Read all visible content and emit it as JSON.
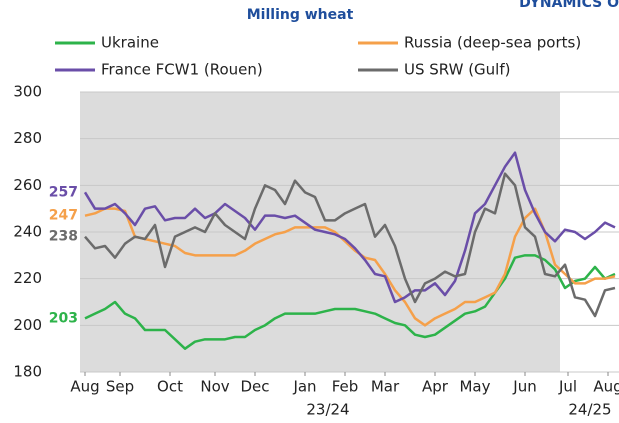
{
  "chart_data": {
    "type": "line",
    "title": "Milling wheat",
    "subtitle": "DYNAMICS O",
    "x": [
      0,
      1,
      2,
      3,
      4,
      5,
      6,
      7,
      8,
      9,
      10,
      11,
      12,
      13,
      14,
      15,
      16,
      17,
      18,
      19,
      20,
      21,
      22,
      23,
      24,
      25,
      26,
      27,
      28,
      29,
      30,
      31,
      32,
      33,
      34,
      35,
      36,
      37,
      38,
      39,
      40,
      41,
      42,
      43,
      44,
      45,
      46,
      47,
      48,
      49,
      50,
      51,
      52,
      53
    ],
    "series": [
      {
        "name": "Ukraine",
        "color": "#2db34a",
        "values": [
          203,
          205,
          207,
          210,
          205,
          203,
          198,
          198,
          198,
          194,
          190,
          193,
          194,
          194,
          194,
          195,
          195,
          198,
          200,
          203,
          205,
          205,
          205,
          205,
          206,
          207,
          207,
          207,
          206,
          205,
          203,
          201,
          200,
          196,
          195,
          196,
          199,
          202,
          205,
          206,
          208,
          214,
          220,
          229,
          230,
          230,
          228,
          224,
          216,
          219,
          220,
          225,
          220,
          222
        ]
      },
      {
        "name": "Russia (deep-sea ports)",
        "color": "#f5a04a",
        "values": [
          247,
          248,
          250,
          250,
          249,
          238,
          237,
          236,
          235,
          234,
          231,
          230,
          230,
          230,
          230,
          230,
          232,
          235,
          237,
          239,
          240,
          242,
          242,
          242,
          242,
          240,
          236,
          232,
          229,
          228,
          222,
          215,
          210,
          203,
          200,
          203,
          205,
          207,
          210,
          210,
          212,
          214,
          222,
          238,
          246,
          250,
          240,
          226,
          222,
          218,
          218,
          220,
          220,
          221
        ]
      },
      {
        "name": "France FCW1 (Rouen)",
        "color": "#6a4ea8",
        "values": [
          257,
          250,
          250,
          252,
          248,
          243,
          250,
          251,
          245,
          246,
          246,
          250,
          246,
          248,
          252,
          249,
          246,
          241,
          247,
          247,
          246,
          247,
          244,
          241,
          240,
          239,
          237,
          233,
          228,
          222,
          221,
          210,
          212,
          215,
          215,
          218,
          213,
          219,
          232,
          248,
          252,
          260,
          268,
          274,
          258,
          248,
          240,
          236,
          241,
          240,
          237,
          240,
          244,
          242
        ]
      },
      {
        "name": "US SRW (Gulf)",
        "color": "#6b6b6b",
        "values": [
          238,
          233,
          234,
          229,
          235,
          238,
          237,
          243,
          225,
          238,
          240,
          242,
          240,
          248,
          243,
          240,
          237,
          250,
          260,
          258,
          252,
          262,
          257,
          255,
          245,
          245,
          248,
          250,
          252,
          238,
          243,
          234,
          220,
          210,
          218,
          220,
          223,
          221,
          222,
          240,
          250,
          248,
          265,
          260,
          242,
          238,
          222,
          221,
          226,
          212,
          211,
          204,
          215,
          216
        ]
      }
    ],
    "xlim": [
      -0.5,
      53.4
    ],
    "xticks": [
      {
        "value": 0,
        "label": "Aug"
      },
      {
        "value": 3.5,
        "label": "Sep"
      },
      {
        "value": 8.5,
        "label": "Oct"
      },
      {
        "value": 13,
        "label": "Nov"
      },
      {
        "value": 17,
        "label": "Dec"
      },
      {
        "value": 22,
        "label": "Jan"
      },
      {
        "value": 26,
        "label": "Feb"
      },
      {
        "value": 30,
        "label": "Mar"
      },
      {
        "value": 35,
        "label": "Apr"
      },
      {
        "value": 39,
        "label": "May"
      },
      {
        "value": 44,
        "label": "Jun"
      },
      {
        "value": 48.3,
        "label": "Jul"
      },
      {
        "value": 52.3,
        "label": "Aug"
      }
    ],
    "year_labels": [
      {
        "value": 24.3,
        "label": "23/24"
      },
      {
        "value": 50.5,
        "label": "24/25"
      }
    ],
    "ylim": [
      180,
      300
    ],
    "yticks": [
      180,
      200,
      220,
      240,
      260,
      280,
      300
    ],
    "grid": true
  }
}
